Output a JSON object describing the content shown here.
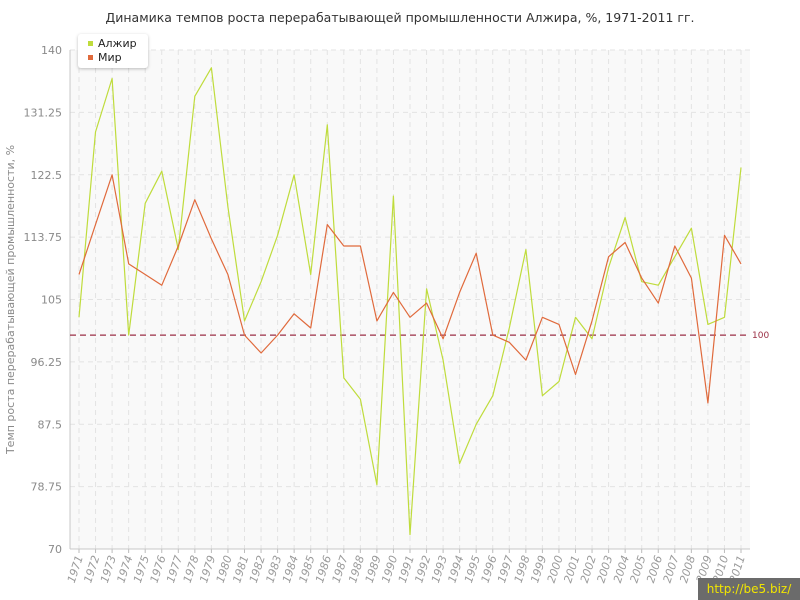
{
  "title": "Динамика темпов роста перерабатывающей промышленности Алжира, %, 1971-2011 гг.",
  "watermark": "http://be5.biz/",
  "colors": {
    "algeria": "#bfdc3c",
    "world": "#e06a3c",
    "reference": "#9b2f45",
    "grid": "#e3e3e3",
    "plot_bg": "#f9f9f9"
  },
  "chart_data": {
    "type": "line",
    "title": "Динамика темпов роста перерабатывающей промышленности Алжира, %, 1971-2011 гг.",
    "xlabel": "",
    "ylabel": "Темп роста перерабатывающей промышленности, %",
    "ylim": [
      70,
      140
    ],
    "yticks": [
      "70",
      "78.75",
      "87.5",
      "96.25",
      "105",
      "113.75",
      "122.5",
      "131.25",
      "140"
    ],
    "grid": true,
    "legend_position": "top-left",
    "categories": [
      "1971",
      "1972",
      "1973",
      "1974",
      "1975",
      "1976",
      "1977",
      "1978",
      "1979",
      "1980",
      "1981",
      "1982",
      "1983",
      "1984",
      "1985",
      "1986",
      "1987",
      "1988",
      "1989",
      "1990",
      "1991",
      "1992",
      "1993",
      "1994",
      "1995",
      "1996",
      "1997",
      "1998",
      "1999",
      "2000",
      "2001",
      "2002",
      "2003",
      "2004",
      "2005",
      "2006",
      "2007",
      "2008",
      "2009",
      "2010",
      "2011"
    ],
    "series": [
      {
        "name": "Алжир",
        "color": "#bfdc3c",
        "values": [
          102.5,
          128.5,
          136,
          100,
          118.5,
          123,
          112,
          133.5,
          137.5,
          118,
          102,
          107.5,
          114,
          122.5,
          108.5,
          129.5,
          94,
          91,
          79,
          119.5,
          72,
          106.5,
          96.5,
          82,
          87.5,
          91.5,
          101,
          112,
          91.5,
          93.5,
          102.5,
          99.5,
          109.5,
          116.5,
          107.5,
          107,
          111,
          115,
          101.5,
          102.5,
          123.5
        ]
      },
      {
        "name": "Мир",
        "color": "#e06a3c",
        "values": [
          108.5,
          115.5,
          122.5,
          110,
          108.5,
          107,
          112.5,
          119,
          113.5,
          108.5,
          100,
          97.5,
          100,
          103,
          101,
          115.5,
          112.5,
          112.5,
          102,
          106,
          102.5,
          104.5,
          99.5,
          106,
          111.5,
          100,
          99,
          96.5,
          102.5,
          101.5,
          94.5,
          102,
          111,
          113,
          108,
          104.5,
          112.5,
          108,
          90.5,
          114,
          110
        ]
      }
    ],
    "reference_line": {
      "value": 100,
      "label": "100"
    }
  }
}
